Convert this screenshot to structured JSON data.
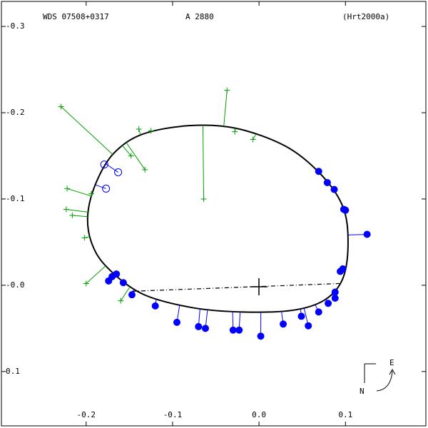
{
  "chart_data": {
    "type": "scatter",
    "title": "WDS 07508+0317",
    "subtitle": "A  2880",
    "reference": "(Hrt2000a)",
    "compass": {
      "east": "E",
      "north": "N"
    },
    "xlim": [
      -0.298,
      0.193
    ],
    "ylim": [
      0.163,
      -0.329
    ],
    "xticks": [
      -0.2,
      -0.1,
      {
        "value": 0,
        "label": "0.0"
      },
      0.1
    ],
    "yticks": [
      -0.3,
      -0.2,
      -0.1,
      {
        "value": 0,
        "label": "-0.0"
      },
      0.1
    ],
    "orbit": {
      "color": "#000000",
      "x": [
        -0.198,
        -0.188,
        -0.168,
        -0.135,
        -0.081,
        -0.027,
        0.031,
        0.072,
        0.097,
        0.103,
        0.097,
        0.076,
        0.039,
        -0.019,
        -0.077,
        -0.135,
        -0.176,
        -0.194
      ],
      "y": [
        -0.083,
        -0.12,
        -0.153,
        -0.175,
        -0.185,
        -0.182,
        -0.161,
        -0.128,
        -0.091,
        -0.05,
        -0.008,
        0.017,
        0.029,
        0.031,
        0.026,
        0.01,
        -0.021,
        -0.05
      ]
    },
    "line_of_nodes": {
      "color": "#000000",
      "x": [
        -0.147,
        0.093
      ],
      "y": [
        0.007,
        -0.002
      ]
    },
    "series": [
      {
        "color": "#0000ff",
        "marker": "filled-circle",
        "x": [
          0.069,
          0.079,
          0.087,
          0.098,
          0.1,
          0.125,
          0.097,
          0.094,
          0.088,
          0.088,
          0.08,
          0.069,
          0.049,
          0.057,
          0.028,
          0.002,
          -0.023,
          -0.03,
          -0.062,
          -0.07,
          -0.095,
          -0.12,
          -0.147,
          -0.157,
          -0.165,
          -0.17,
          -0.174
        ],
        "y": [
          -0.132,
          -0.119,
          -0.111,
          -0.088,
          -0.087,
          -0.059,
          -0.019,
          -0.016,
          0.008,
          0.015,
          0.021,
          0.031,
          0.036,
          0.047,
          0.045,
          0.059,
          0.052,
          0.052,
          0.05,
          0.048,
          0.043,
          0.024,
          0.011,
          -0.003,
          -0.013,
          -0.01,
          -0.005
        ]
      },
      {
        "color": "#0000ff",
        "marker": "open-circle",
        "x": [
          -0.179,
          -0.163,
          -0.177
        ],
        "y": [
          -0.14,
          -0.131,
          -0.112
        ]
      },
      {
        "color": "#00a000",
        "marker": "plus",
        "x": [
          -0.037,
          -0.064,
          -0.229,
          -0.148,
          -0.125,
          -0.139,
          -0.132,
          -0.222,
          -0.194,
          -0.223,
          -0.216,
          -0.202,
          -0.2,
          -0.16,
          -0.028,
          -0.007
        ],
        "y": [
          -0.226,
          -0.1,
          -0.207,
          -0.15,
          -0.179,
          -0.181,
          -0.134,
          -0.112,
          -0.106,
          -0.088,
          -0.081,
          -0.055,
          -0.002,
          0.018,
          -0.178,
          -0.169
        ]
      }
    ]
  }
}
